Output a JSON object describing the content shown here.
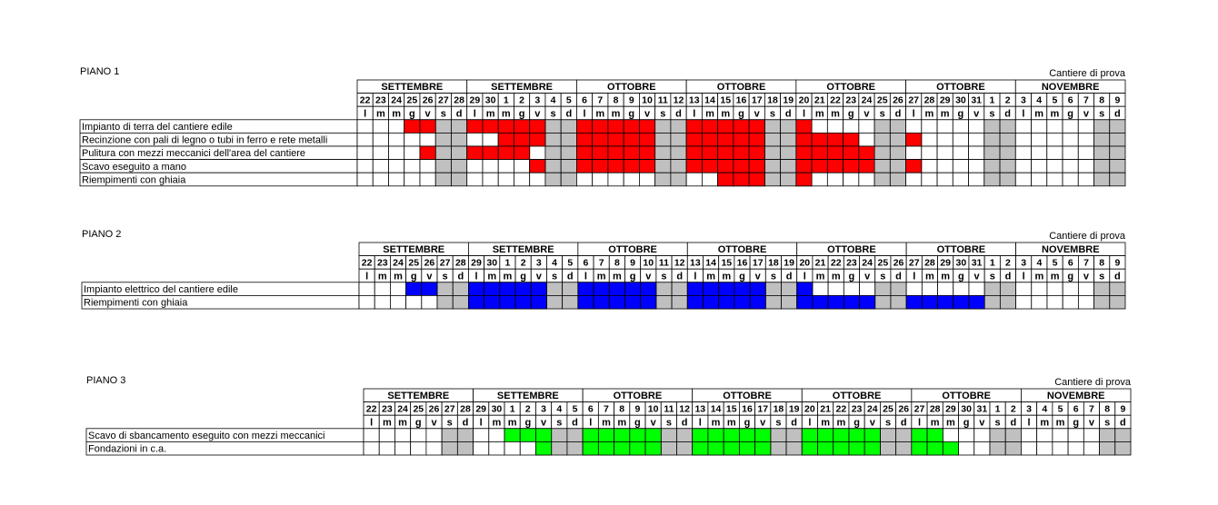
{
  "calendar": {
    "months": [
      "SETTEMBRE",
      "SETTEMBRE",
      "OTTOBRE",
      "OTTOBRE",
      "OTTOBRE",
      "OTTOBRE",
      "NOVEMBRE"
    ],
    "days": [
      "22",
      "23",
      "24",
      "25",
      "26",
      "27",
      "28",
      "29",
      "30",
      "1",
      "2",
      "3",
      "4",
      "5",
      "6",
      "7",
      "8",
      "9",
      "10",
      "11",
      "12",
      "13",
      "14",
      "15",
      "16",
      "17",
      "18",
      "19",
      "20",
      "21",
      "22",
      "23",
      "24",
      "25",
      "26",
      "27",
      "28",
      "29",
      "30",
      "31",
      "1",
      "2",
      "3",
      "4",
      "5",
      "6",
      "7",
      "8",
      "9"
    ],
    "weekdays": [
      "l",
      "m",
      "m",
      "g",
      "v",
      "s",
      "d"
    ],
    "weekend_color": "#c0c0c0"
  },
  "plans": [
    {
      "title": "PIANO 1",
      "subtitle": "Cantiere di prova",
      "color": "#ff0000",
      "rows": [
        {
          "label": "Impianto di terra del cantiere edile",
          "active": [
            3,
            4,
            7,
            8,
            9,
            10,
            11,
            14,
            15,
            16,
            17,
            18,
            21,
            22,
            23,
            24,
            25,
            28
          ]
        },
        {
          "label": "Recinzione con pali di legno o tubi in ferro e rete metalli",
          "active": [
            9,
            10,
            11,
            14,
            15,
            16,
            17,
            18,
            21,
            22,
            23,
            24,
            25,
            28,
            29,
            30,
            31,
            35
          ]
        },
        {
          "label": "Pulitura con mezzi meccanici dell'area del cantiere",
          "active": [
            4,
            7,
            8,
            9,
            10,
            14,
            15,
            16,
            17,
            18,
            21,
            22,
            23,
            24,
            25,
            28,
            29,
            30,
            31,
            32
          ]
        },
        {
          "label": "Scavo eseguito a mano",
          "active": [
            11,
            14,
            15,
            16,
            17,
            18,
            21,
            22,
            23,
            24,
            25,
            28,
            29,
            30,
            31,
            32,
            35
          ]
        },
        {
          "label": "Riempimenti con ghiaia",
          "active": [
            23,
            24,
            25,
            28
          ]
        }
      ]
    },
    {
      "title": "PIANO 2",
      "subtitle": "Cantiere di prova",
      "color": "#0000ff",
      "rows": [
        {
          "label": "Impianto elettrico del cantiere edile",
          "active": [
            3,
            4,
            7,
            8,
            9,
            10,
            11,
            14,
            15,
            16,
            17,
            18,
            21,
            22,
            23,
            24,
            25,
            28
          ]
        },
        {
          "label": "Riempimenti con ghiaia",
          "active": [
            7,
            8,
            9,
            10,
            11,
            14,
            15,
            16,
            17,
            18,
            21,
            22,
            23,
            24,
            25,
            28,
            29,
            30,
            31,
            32,
            35,
            36,
            37,
            38,
            39
          ]
        }
      ]
    },
    {
      "title": "PIANO 3",
      "subtitle": "Cantiere di prova",
      "color": "#00ff00",
      "rows": [
        {
          "label": "Scavo di sbancamento eseguito con mezzi meccanici",
          "active": [
            9,
            10,
            11,
            14,
            15,
            16,
            17,
            18,
            21,
            22,
            23,
            24,
            25,
            28,
            29,
            30,
            31,
            32,
            35,
            36
          ]
        },
        {
          "label": "Fondazioni in c.a.",
          "active": [
            11,
            14,
            15,
            16,
            17,
            18,
            21,
            22,
            23,
            24,
            25,
            28,
            29,
            30,
            31,
            32,
            35,
            36,
            37
          ]
        }
      ]
    }
  ]
}
